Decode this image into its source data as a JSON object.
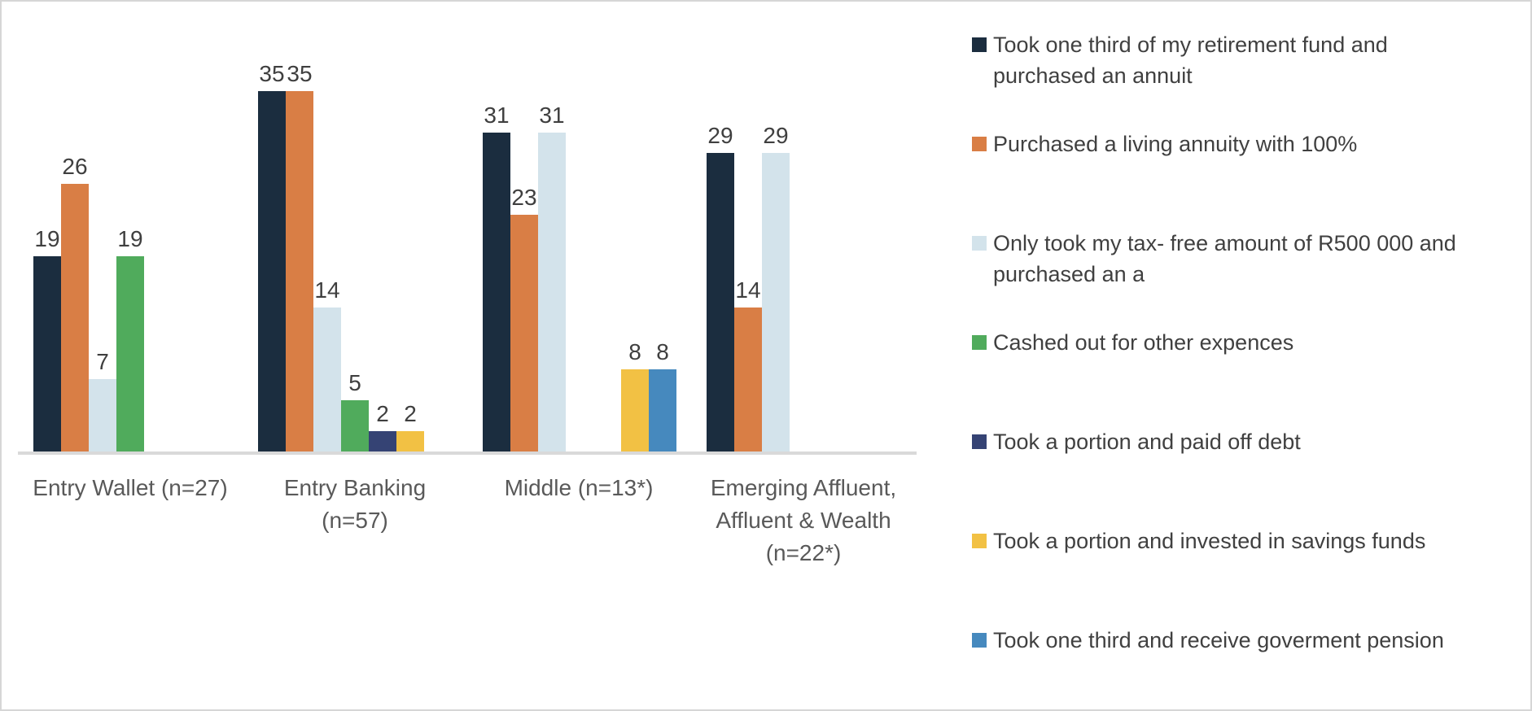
{
  "chart_data": {
    "type": "bar",
    "title": "",
    "xlabel": "",
    "ylabel": "",
    "ylim": [
      0,
      35
    ],
    "grid": false,
    "legend_position": "right",
    "axis_line_color": "#d9d9d9",
    "value_label_color": "#3f3f3f",
    "category_label_color": "#595959",
    "categories": [
      "Entry Wallet (n=27)",
      "Entry Banking (n=57)",
      "Middle (n=13*)",
      "Emerging Affluent, Affluent & Wealth (n=22*)"
    ],
    "series": [
      {
        "name": "Took one third of my retirement fund and purchased an annuit",
        "color": "#1b2d3f",
        "values": [
          19,
          35,
          31,
          29
        ]
      },
      {
        "name": "Purchased a living annuity with 100%",
        "color": "#d97e45",
        "values": [
          26,
          35,
          23,
          14
        ]
      },
      {
        "name": "Only took my tax- free amount of R500 000 and purchased an a",
        "color": "#d3e3eb",
        "values": [
          7,
          14,
          31,
          29
        ]
      },
      {
        "name": "Cashed out for other expences",
        "color": "#50ab5c",
        "values": [
          19,
          5,
          0,
          0
        ]
      },
      {
        "name": "Took a portion and paid off debt",
        "color": "#354374",
        "values": [
          0,
          2,
          0,
          0
        ]
      },
      {
        "name": "Took a portion and invested in savings funds",
        "color": "#f2c144",
        "values": [
          0,
          2,
          8,
          0
        ]
      },
      {
        "name": "Took one third and receive goverment pension",
        "color": "#4689be",
        "values": [
          0,
          0,
          8,
          0
        ]
      }
    ]
  }
}
